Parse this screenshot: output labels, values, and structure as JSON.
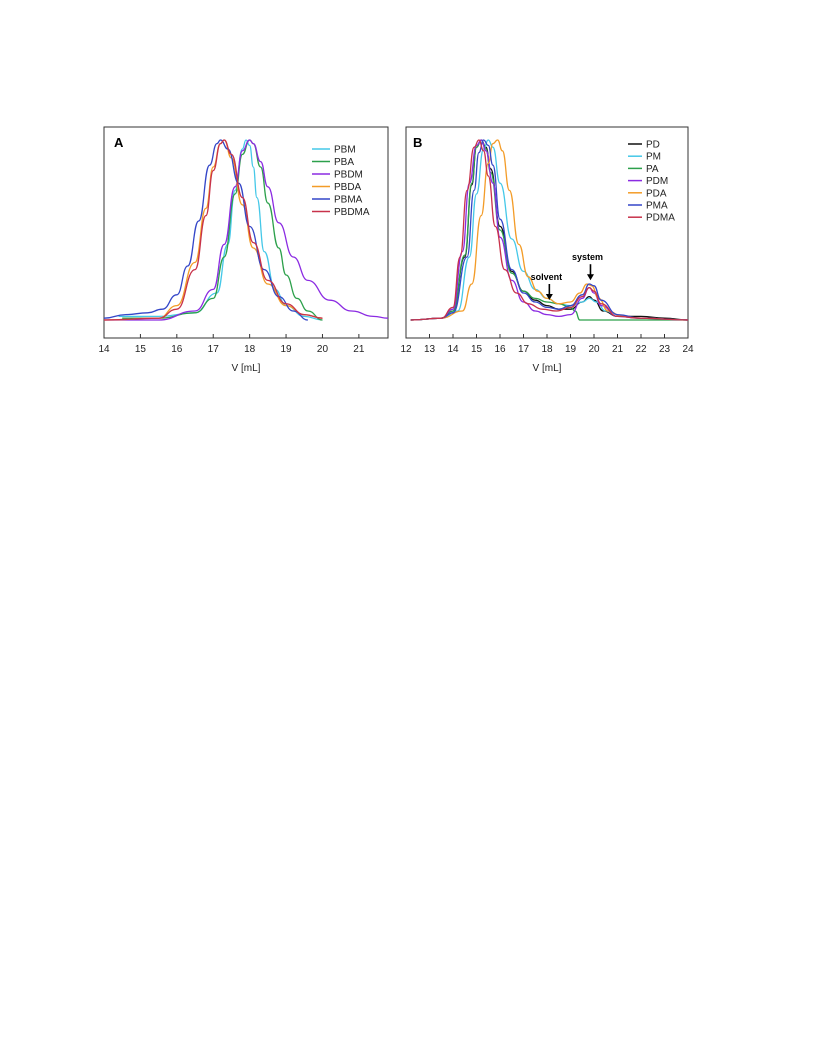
{
  "chart_data": [
    {
      "type": "line",
      "panel_label": "A",
      "xlabel": "V [mL]",
      "ylabel": "",
      "xlim": [
        14,
        21.8
      ],
      "ylim": [
        0,
        1.1
      ],
      "xticks": [
        14,
        15,
        16,
        17,
        18,
        19,
        20,
        21
      ],
      "grid": false,
      "legend_position": "top-right",
      "series": [
        {
          "name": "PBM",
          "color": "#45c8e8",
          "x": [
            14.4,
            15.5,
            16.5,
            17.1,
            17.4,
            17.6,
            17.8,
            17.9,
            18.0,
            18.1,
            18.2,
            18.4,
            18.7,
            19.0,
            19.5,
            20.0
          ],
          "y": [
            0.02,
            0.02,
            0.04,
            0.15,
            0.42,
            0.72,
            0.95,
            1.0,
            0.97,
            0.85,
            0.68,
            0.38,
            0.17,
            0.08,
            0.02,
            0.0
          ]
        },
        {
          "name": "PBA",
          "color": "#2ca04b",
          "x": [
            14.5,
            15.5,
            16.5,
            17.0,
            17.3,
            17.6,
            17.8,
            18.0,
            18.1,
            18.3,
            18.5,
            18.8,
            19.0,
            19.3,
            19.6,
            20.0
          ],
          "y": [
            0.01,
            0.01,
            0.04,
            0.12,
            0.35,
            0.7,
            0.92,
            1.0,
            0.98,
            0.85,
            0.65,
            0.4,
            0.25,
            0.12,
            0.05,
            0.0
          ]
        },
        {
          "name": "PBDM",
          "color": "#8b2be2",
          "x": [
            14.0,
            15.5,
            16.5,
            17.0,
            17.3,
            17.6,
            17.8,
            18.0,
            18.1,
            18.3,
            18.5,
            18.8,
            19.2,
            19.6,
            20.2,
            20.8,
            21.4,
            21.8
          ],
          "y": [
            0.0,
            0.0,
            0.05,
            0.17,
            0.42,
            0.74,
            0.94,
            1.0,
            0.98,
            0.88,
            0.74,
            0.54,
            0.35,
            0.22,
            0.11,
            0.05,
            0.02,
            0.01
          ]
        },
        {
          "name": "PBDA",
          "color": "#f39c28",
          "x": [
            14.0,
            15.5,
            16.0,
            16.5,
            16.8,
            17.0,
            17.2,
            17.3,
            17.5,
            17.8,
            18.1,
            18.5,
            19.0,
            19.5,
            20.0
          ],
          "y": [
            0.0,
            0.01,
            0.08,
            0.32,
            0.62,
            0.85,
            0.98,
            1.0,
            0.9,
            0.64,
            0.4,
            0.2,
            0.08,
            0.03,
            0.01
          ]
        },
        {
          "name": "PBMA",
          "color": "#3446c8",
          "x": [
            14.0,
            14.6,
            15.2,
            15.6,
            16.0,
            16.3,
            16.6,
            16.9,
            17.1,
            17.2,
            17.4,
            17.7,
            18.0,
            18.4,
            18.8,
            19.2,
            19.6
          ],
          "y": [
            0.01,
            0.03,
            0.04,
            0.06,
            0.14,
            0.3,
            0.55,
            0.86,
            0.98,
            1.0,
            0.95,
            0.76,
            0.52,
            0.28,
            0.13,
            0.05,
            0.0
          ]
        },
        {
          "name": "PBDMA",
          "color": "#c8324a",
          "x": [
            14.0,
            15.5,
            16.0,
            16.5,
            16.8,
            17.0,
            17.2,
            17.3,
            17.5,
            17.8,
            18.1,
            18.5,
            19.0,
            19.5,
            20.0
          ],
          "y": [
            0.0,
            0.01,
            0.06,
            0.28,
            0.58,
            0.83,
            0.98,
            1.0,
            0.92,
            0.68,
            0.43,
            0.22,
            0.09,
            0.03,
            0.01
          ]
        }
      ]
    },
    {
      "type": "line",
      "panel_label": "B",
      "xlabel": "V [mL]",
      "ylabel": "",
      "xlim": [
        12,
        24
      ],
      "ylim": [
        0,
        1.1
      ],
      "xticks": [
        12,
        13,
        14,
        15,
        16,
        17,
        18,
        19,
        20,
        21,
        22,
        23,
        24
      ],
      "grid": false,
      "legend_position": "top-right",
      "annotations": [
        {
          "text": "solvent",
          "x": 18.1,
          "y": 0.1
        },
        {
          "text": "system",
          "x": 19.85,
          "y": 0.21
        }
      ],
      "series": [
        {
          "name": "PD",
          "color": "#111111",
          "x": [
            12.2,
            13.5,
            14.0,
            14.5,
            14.8,
            15.0,
            15.2,
            15.4,
            15.6,
            16.0,
            16.5,
            17.0,
            17.5,
            18.0,
            18.5,
            19.0,
            19.5,
            19.8,
            20.0,
            20.4,
            21.0,
            22.0,
            23.0,
            24.0
          ],
          "y": [
            0.0,
            0.01,
            0.05,
            0.35,
            0.75,
            0.96,
            1.0,
            0.96,
            0.84,
            0.52,
            0.27,
            0.16,
            0.11,
            0.08,
            0.06,
            0.06,
            0.1,
            0.13,
            0.11,
            0.05,
            0.02,
            0.02,
            0.01,
            0.0
          ]
        },
        {
          "name": "PM",
          "color": "#45c8e8",
          "x": [
            12.2,
            13.5,
            14.2,
            14.7,
            15.0,
            15.3,
            15.5,
            15.7,
            16.0,
            16.5,
            17.0,
            17.5,
            18.0,
            18.5,
            19.0,
            19.5,
            19.8,
            20.1,
            20.5,
            21.0,
            22.0,
            24.0
          ],
          "y": [
            0.0,
            0.01,
            0.05,
            0.35,
            0.7,
            0.95,
            1.0,
            0.96,
            0.76,
            0.45,
            0.27,
            0.17,
            0.12,
            0.09,
            0.08,
            0.1,
            0.12,
            0.1,
            0.05,
            0.02,
            0.01,
            0.0
          ]
        },
        {
          "name": "PA",
          "color": "#2ca04b",
          "x": [
            12.2,
            13.5,
            14.0,
            14.5,
            14.8,
            15.0,
            15.2,
            15.4,
            15.6,
            16.0,
            16.5,
            17.0,
            17.5,
            18.0,
            18.5,
            19.0,
            19.2,
            19.4,
            19.6,
            20.0,
            22.0,
            24.0
          ],
          "y": [
            0.0,
            0.01,
            0.05,
            0.36,
            0.76,
            0.96,
            1.0,
            0.95,
            0.82,
            0.5,
            0.26,
            0.16,
            0.12,
            0.1,
            0.09,
            0.07,
            0.05,
            0.0,
            0.0,
            0.0,
            0.0,
            0.0
          ]
        },
        {
          "name": "PDM",
          "color": "#8b2be2",
          "x": [
            12.2,
            13.5,
            14.0,
            14.4,
            14.7,
            15.0,
            15.2,
            15.4,
            15.7,
            16.0,
            16.5,
            17.0,
            17.5,
            18.0,
            18.5,
            19.0,
            19.5,
            19.8,
            20.0,
            20.3,
            21.0,
            22.0,
            24.0
          ],
          "y": [
            0.0,
            0.01,
            0.06,
            0.38,
            0.76,
            0.97,
            1.0,
            0.94,
            0.76,
            0.46,
            0.22,
            0.1,
            0.05,
            0.03,
            0.02,
            0.03,
            0.12,
            0.18,
            0.15,
            0.08,
            0.02,
            0.01,
            0.0
          ]
        },
        {
          "name": "PDA",
          "color": "#f39c28",
          "x": [
            12.2,
            13.5,
            14.4,
            14.8,
            15.2,
            15.5,
            15.7,
            15.9,
            16.1,
            16.4,
            16.8,
            17.2,
            17.6,
            18.0,
            18.5,
            19.0,
            19.4,
            19.7,
            19.9,
            20.2,
            20.6,
            21.2,
            22.0,
            24.0
          ],
          "y": [
            0.0,
            0.01,
            0.05,
            0.2,
            0.58,
            0.87,
            0.98,
            1.0,
            0.94,
            0.72,
            0.42,
            0.24,
            0.16,
            0.12,
            0.09,
            0.1,
            0.15,
            0.2,
            0.19,
            0.12,
            0.05,
            0.02,
            0.01,
            0.0
          ]
        },
        {
          "name": "PMA",
          "color": "#3446c8",
          "x": [
            12.2,
            13.5,
            14.0,
            14.6,
            14.9,
            15.1,
            15.3,
            15.5,
            15.7,
            16.0,
            16.5,
            17.0,
            17.5,
            18.0,
            18.5,
            19.0,
            19.5,
            19.8,
            20.0,
            20.3,
            21.0,
            22.0,
            24.0
          ],
          "y": [
            0.0,
            0.01,
            0.04,
            0.35,
            0.72,
            0.93,
            1.0,
            0.97,
            0.86,
            0.56,
            0.28,
            0.15,
            0.1,
            0.07,
            0.06,
            0.08,
            0.14,
            0.2,
            0.19,
            0.11,
            0.03,
            0.01,
            0.0
          ]
        },
        {
          "name": "PDMA",
          "color": "#c8324a",
          "x": [
            12.2,
            13.5,
            14.0,
            14.3,
            14.6,
            14.9,
            15.1,
            15.3,
            15.5,
            15.8,
            16.2,
            16.7,
            17.2,
            17.8,
            18.4,
            19.0,
            19.5,
            19.8,
            20.0,
            20.3,
            21.0,
            22.0,
            24.0
          ],
          "y": [
            0.0,
            0.01,
            0.07,
            0.35,
            0.72,
            0.96,
            1.0,
            0.94,
            0.8,
            0.52,
            0.28,
            0.15,
            0.09,
            0.06,
            0.05,
            0.07,
            0.13,
            0.18,
            0.16,
            0.09,
            0.02,
            0.01,
            0.0
          ]
        }
      ]
    }
  ]
}
